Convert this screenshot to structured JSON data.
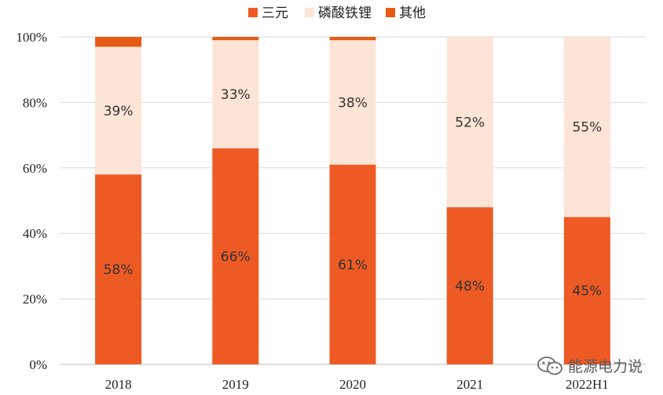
{
  "chart_data": {
    "type": "bar",
    "stacked": true,
    "categories": [
      "2018",
      "2019",
      "2020",
      "2021",
      "2022H1"
    ],
    "series": [
      {
        "name": "三元",
        "color": "#EE5A24",
        "values": [
          58,
          66,
          61,
          48,
          45
        ]
      },
      {
        "name": "磷酸铁锂",
        "color": "#FCE4D6",
        "values": [
          39,
          33,
          38,
          52,
          55
        ]
      },
      {
        "name": "其他",
        "color": "#E55B13",
        "values": [
          3,
          1,
          1,
          0.5,
          0.5
        ]
      }
    ],
    "data_labels": [
      {
        "series": 0,
        "labels": [
          "58%",
          "66%",
          "61%",
          "48%",
          "45%"
        ]
      },
      {
        "series": 1,
        "labels": [
          "39%",
          "33%",
          "38%",
          "52%",
          "55%"
        ]
      }
    ],
    "y_ticks": [
      "0%",
      "20%",
      "40%",
      "60%",
      "80%",
      "100%"
    ],
    "ylim": [
      0,
      100
    ],
    "legend_position": "top-center",
    "grid": true
  },
  "watermark": {
    "icon": "wechat-icon",
    "text": "能源电力说"
  }
}
